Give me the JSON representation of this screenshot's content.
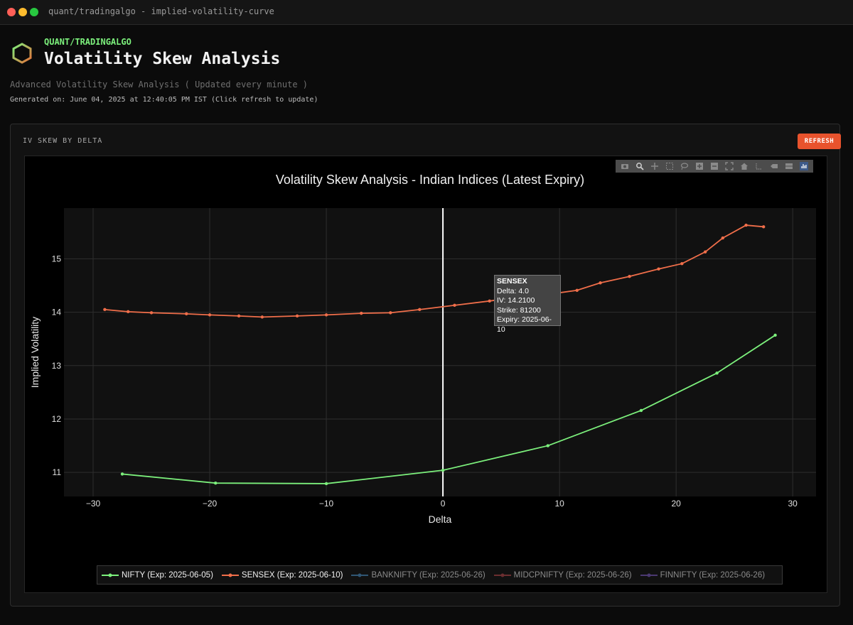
{
  "window": {
    "title": "quant/tradingalgo - implied-volatility-curve"
  },
  "header": {
    "brand": "QUANT/TRADINGALGO",
    "title": "Volatility Skew Analysis",
    "subtitle": "Advanced Volatility Skew Analysis ( Updated every minute )",
    "generated": "Generated on: June 04, 2025 at 12:40:05 PM IST (Click refresh to update)"
  },
  "panel": {
    "label": "IV SKEW BY DELTA",
    "refresh_label": "REFRESH"
  },
  "modebar_icons": [
    "camera-icon",
    "zoom-icon",
    "pan-icon",
    "box-select-icon",
    "lasso-icon",
    "zoom-in-icon",
    "zoom-out-icon",
    "autoscale-icon",
    "home-icon",
    "spike-lines-icon",
    "hover-closest-icon",
    "hover-compare-icon",
    "plotly-logo-icon"
  ],
  "colors": {
    "accent": "#e8532d",
    "brand": "#7cf07c",
    "background": "#0b0b0b"
  },
  "tooltip": {
    "series": "SENSEX",
    "delta": "Delta: 4.0",
    "iv": "IV: 14.2100",
    "strike": "Strike: 81200",
    "expiry": "Expiry: 2025-06-10"
  },
  "chart_data": {
    "type": "line",
    "title": "Volatility Skew Analysis - Indian Indices (Latest Expiry)",
    "xlabel": "Delta",
    "ylabel": "Implied Volatility",
    "xlim": [
      -32.5,
      32
    ],
    "ylim": [
      10.55,
      15.95
    ],
    "xticks": [
      -30,
      -20,
      -10,
      0,
      10,
      20,
      30
    ],
    "xtick_labels": [
      "−30",
      "−20",
      "−10",
      "0",
      "10",
      "20",
      "30"
    ],
    "yticks": [
      11,
      12,
      13,
      14,
      15
    ],
    "grid": true,
    "vline_x": 0,
    "legend_position": "bottom",
    "series": [
      {
        "name": "NIFTY (Exp: 2025-06-05)",
        "color": "#7cf07c",
        "visible": true,
        "x": [
          -27.5,
          -19.5,
          -10.0,
          0.0,
          9.0,
          17.0,
          23.5,
          28.5
        ],
        "y": [
          10.97,
          10.8,
          10.79,
          11.04,
          11.5,
          12.16,
          12.86,
          13.57
        ]
      },
      {
        "name": "SENSEX (Exp: 2025-06-10)",
        "color": "#f06e4a",
        "visible": true,
        "x": [
          -29.0,
          -27.0,
          -25.0,
          -22.0,
          -20.0,
          -17.5,
          -15.5,
          -12.5,
          -10.0,
          -7.0,
          -4.5,
          -2.0,
          1.0,
          4.0,
          7.0,
          9.5,
          11.5,
          13.5,
          16.0,
          18.5,
          20.5,
          22.5,
          24.0,
          26.0,
          27.5
        ],
        "y": [
          14.05,
          14.01,
          13.99,
          13.97,
          13.95,
          13.93,
          13.91,
          13.93,
          13.95,
          13.98,
          13.99,
          14.05,
          14.13,
          14.21,
          14.3,
          14.35,
          14.41,
          14.55,
          14.67,
          14.81,
          14.91,
          15.13,
          15.39,
          15.63,
          15.6
        ]
      },
      {
        "name": "BANKNIFTY (Exp: 2025-06-26)",
        "color": "#4a8fc6",
        "visible": false,
        "x": [],
        "y": []
      },
      {
        "name": "MIDCPNIFTY (Exp: 2025-06-26)",
        "color": "#b5464a",
        "visible": false,
        "x": [],
        "y": []
      },
      {
        "name": "FINNIFTY (Exp: 2025-06-26)",
        "color": "#7b5bc0",
        "visible": false,
        "x": [],
        "y": []
      }
    ]
  }
}
